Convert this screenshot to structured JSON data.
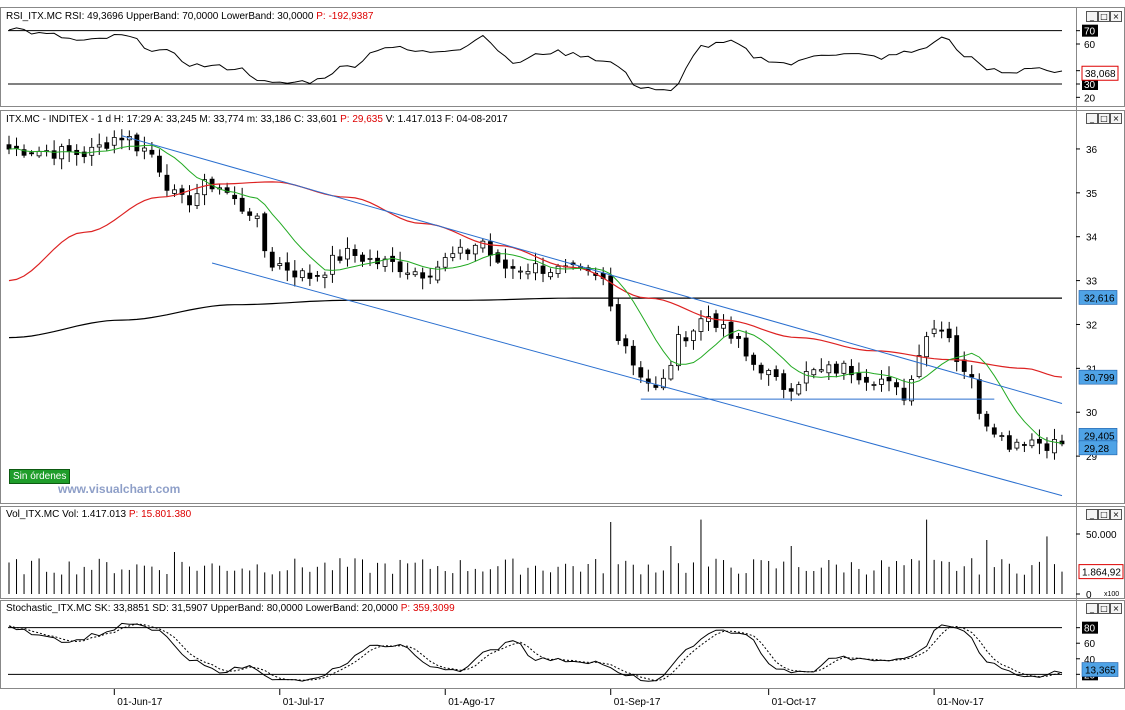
{
  "watermark": "www.visualchart.com",
  "orders_badge": "Sin órdenes",
  "colors": {
    "up_candle": "#ffffff",
    "down_candle": "#000000",
    "ma_fast": "#22aa22",
    "ma_slow": "#dd2222",
    "ma_long": "#000000",
    "channel": "#2a6fcf",
    "badge_blue": "#4fa3e6",
    "badge_gray": "#808080",
    "last_price_red": "#dd0000"
  },
  "window_icons": [
    "minimize-icon",
    "restore-icon",
    "close-icon"
  ],
  "rsi_panel": {
    "header": [
      {
        "text": "RSI_ITX.MC",
        "color": "#000000"
      },
      {
        "text": "RSI: 49,3696",
        "color": "#000000"
      },
      {
        "text": "UpperBand: 70,0000",
        "color": "#000000"
      },
      {
        "text": "LowerBand: 30,0000",
        "color": "#000000"
      },
      {
        "text": "P: -192,9387",
        "color": "#dd0000"
      }
    ],
    "ticks": [
      "70",
      "60",
      "40",
      "30",
      "20"
    ],
    "badge": "38,068"
  },
  "price_panel": {
    "header": [
      {
        "text": "ITX.MC - INDITEX - 1 d",
        "color": "#000000"
      },
      {
        "text": "H: 17:29",
        "color": "#000000"
      },
      {
        "text": "A: 33,245",
        "color": "#000000"
      },
      {
        "text": "M: 33,774",
        "color": "#000000"
      },
      {
        "text": "m: 33,186",
        "color": "#000000"
      },
      {
        "text": "C: 33,601",
        "color": "#000000"
      },
      {
        "text": "P: 29,635",
        "color": "#dd0000"
      },
      {
        "text": "V: 1.417.013",
        "color": "#000000"
      },
      {
        "text": "F: 04-08-2017",
        "color": "#000000"
      }
    ],
    "badges": {
      "ma_long": "32,616",
      "ma_slow": "30,799",
      "last_ma": "29,405",
      "last_price": "29,28"
    }
  },
  "vol_panel": {
    "header": [
      {
        "text": "Vol_ITX.MC",
        "color": "#000000"
      },
      {
        "text": "Vol: 1.417.013",
        "color": "#000000"
      },
      {
        "text": "P: 15.801.380",
        "color": "#dd0000"
      }
    ],
    "ticks": [
      "50.000",
      "25.000",
      "0"
    ],
    "badge": "1.864,92",
    "multiplier": "x100"
  },
  "stoch_panel": {
    "header": [
      {
        "text": "Stochastic_ITX.MC",
        "color": "#000000"
      },
      {
        "text": "SK: 33,8851",
        "color": "#000000"
      },
      {
        "text": "SD: 31,5907",
        "color": "#000000"
      },
      {
        "text": "UpperBand: 80,0000",
        "color": "#000000"
      },
      {
        "text": "LowerBand: 20,0000",
        "color": "#000000"
      },
      {
        "text": "P: 359,3099",
        "color": "#dd0000"
      }
    ],
    "ticks": [
      "80",
      "60",
      "40",
      "20"
    ],
    "badge": "13,365"
  },
  "chart_data": [
    {
      "type": "candlestick",
      "symbol": "ITX.MC - INDITEX - 1 d",
      "ylim": [
        28.0,
        36.5
      ],
      "y_ticks": [
        36,
        35,
        34,
        33,
        32,
        31,
        30,
        29
      ],
      "x_tick_labels": [
        "01-Jun-17",
        "01-Jul-17",
        "01-Ago-17",
        "01-Sep-17",
        "01-Oct-17",
        "01-Nov-17"
      ],
      "x_tick_index": [
        14,
        36,
        58,
        80,
        101,
        123
      ],
      "n": 141,
      "close_keypoints": [
        [
          0,
          36.0
        ],
        [
          10,
          35.9
        ],
        [
          15,
          36.3
        ],
        [
          18,
          36.0
        ],
        [
          23,
          34.8
        ],
        [
          27,
          35.2
        ],
        [
          32,
          34.6
        ],
        [
          35,
          33.4
        ],
        [
          40,
          33.1
        ],
        [
          45,
          33.6
        ],
        [
          50,
          33.4
        ],
        [
          55,
          33.2
        ],
        [
          60,
          33.6
        ],
        [
          63,
          33.9
        ],
        [
          65,
          33.3
        ],
        [
          70,
          33.3
        ],
        [
          75,
          33.2
        ],
        [
          79,
          33.0
        ],
        [
          81,
          31.8
        ],
        [
          84,
          30.9
        ],
        [
          86,
          30.5
        ],
        [
          90,
          31.8
        ],
        [
          93,
          32.2
        ],
        [
          96,
          31.7
        ],
        [
          99,
          31.1
        ],
        [
          103,
          30.6
        ],
        [
          107,
          30.9
        ],
        [
          111,
          31.0
        ],
        [
          115,
          30.8
        ],
        [
          119,
          30.4
        ],
        [
          122,
          31.8
        ],
        [
          124,
          32.0
        ],
        [
          127,
          31.0
        ],
        [
          130,
          29.8
        ],
        [
          133,
          29.3
        ],
        [
          135,
          29.4
        ],
        [
          138,
          29.3
        ],
        [
          140,
          29.28
        ]
      ],
      "ma_fast": {
        "label": "",
        "period": 9
      },
      "ma_slow_keypoints": [
        [
          0,
          33.0
        ],
        [
          10,
          34.1
        ],
        [
          20,
          34.9
        ],
        [
          28,
          35.2
        ],
        [
          35,
          35.25
        ],
        [
          45,
          34.9
        ],
        [
          55,
          34.3
        ],
        [
          65,
          33.8
        ],
        [
          75,
          33.3
        ],
        [
          85,
          32.6
        ],
        [
          95,
          32.1
        ],
        [
          105,
          31.7
        ],
        [
          115,
          31.4
        ],
        [
          125,
          31.2
        ],
        [
          135,
          31.0
        ],
        [
          140,
          30.8
        ]
      ],
      "ma_long_keypoints": [
        [
          0,
          31.7
        ],
        [
          15,
          32.1
        ],
        [
          30,
          32.45
        ],
        [
          45,
          32.55
        ],
        [
          60,
          32.55
        ],
        [
          75,
          32.6
        ],
        [
          90,
          32.6
        ],
        [
          110,
          32.6
        ],
        [
          125,
          32.6
        ],
        [
          140,
          32.6
        ]
      ],
      "channel_upper": [
        [
          15,
          36.3
        ],
        [
          140,
          30.2
        ]
      ],
      "channel_lower": [
        [
          27,
          33.4
        ],
        [
          140,
          28.1
        ]
      ],
      "support_line": [
        [
          84,
          30.3
        ],
        [
          131,
          30.3
        ]
      ],
      "resistance_line": [
        [
          79,
          32.65
        ],
        [
          140,
          32.65
        ]
      ]
    },
    {
      "type": "line",
      "name": "RSI",
      "ylim": [
        15,
        75
      ],
      "bands": [
        30,
        70
      ],
      "keypoints": [
        [
          0,
          72
        ],
        [
          5,
          67
        ],
        [
          10,
          62
        ],
        [
          15,
          66
        ],
        [
          20,
          55
        ],
        [
          25,
          44
        ],
        [
          30,
          42
        ],
        [
          35,
          30
        ],
        [
          40,
          32
        ],
        [
          45,
          43
        ],
        [
          50,
          58
        ],
        [
          55,
          54
        ],
        [
          60,
          57
        ],
        [
          63,
          66
        ],
        [
          67,
          46
        ],
        [
          72,
          54
        ],
        [
          76,
          52
        ],
        [
          80,
          46
        ],
        [
          84,
          28
        ],
        [
          88,
          24
        ],
        [
          92,
          58
        ],
        [
          96,
          61
        ],
        [
          100,
          49
        ],
        [
          104,
          45
        ],
        [
          108,
          53
        ],
        [
          112,
          52
        ],
        [
          116,
          50
        ],
        [
          120,
          54
        ],
        [
          123,
          60
        ],
        [
          124,
          66
        ],
        [
          127,
          52
        ],
        [
          130,
          41
        ],
        [
          133,
          38
        ],
        [
          136,
          43
        ],
        [
          140,
          38
        ]
      ]
    },
    {
      "type": "bar",
      "name": "Volume",
      "ylim": [
        0,
        60000
      ],
      "y_ticks": [
        50000,
        25000,
        0
      ],
      "spikes": [
        [
          22,
          35000
        ],
        [
          80,
          60000
        ],
        [
          88,
          40000
        ],
        [
          92,
          62000
        ],
        [
          104,
          40000
        ],
        [
          122,
          62000
        ],
        [
          130,
          45000
        ],
        [
          138,
          48000
        ]
      ]
    },
    {
      "type": "line",
      "name": "Stochastic",
      "ylim": [
        5,
        95
      ],
      "bands": [
        20,
        80
      ],
      "sk_keypoints": [
        [
          0,
          80
        ],
        [
          4,
          72
        ],
        [
          8,
          62
        ],
        [
          12,
          72
        ],
        [
          16,
          85
        ],
        [
          20,
          75
        ],
        [
          24,
          38
        ],
        [
          28,
          24
        ],
        [
          32,
          30
        ],
        [
          36,
          12
        ],
        [
          40,
          12
        ],
        [
          44,
          28
        ],
        [
          48,
          56
        ],
        [
          52,
          58
        ],
        [
          56,
          30
        ],
        [
          60,
          26
        ],
        [
          64,
          50
        ],
        [
          67,
          65
        ],
        [
          70,
          40
        ],
        [
          74,
          38
        ],
        [
          78,
          36
        ],
        [
          82,
          18
        ],
        [
          86,
          10
        ],
        [
          90,
          50
        ],
        [
          94,
          78
        ],
        [
          98,
          70
        ],
        [
          102,
          26
        ],
        [
          106,
          22
        ],
        [
          110,
          42
        ],
        [
          114,
          38
        ],
        [
          118,
          38
        ],
        [
          121,
          48
        ],
        [
          124,
          86
        ],
        [
          127,
          75
        ],
        [
          130,
          38
        ],
        [
          134,
          20
        ],
        [
          137,
          18
        ],
        [
          140,
          23
        ]
      ]
    }
  ]
}
